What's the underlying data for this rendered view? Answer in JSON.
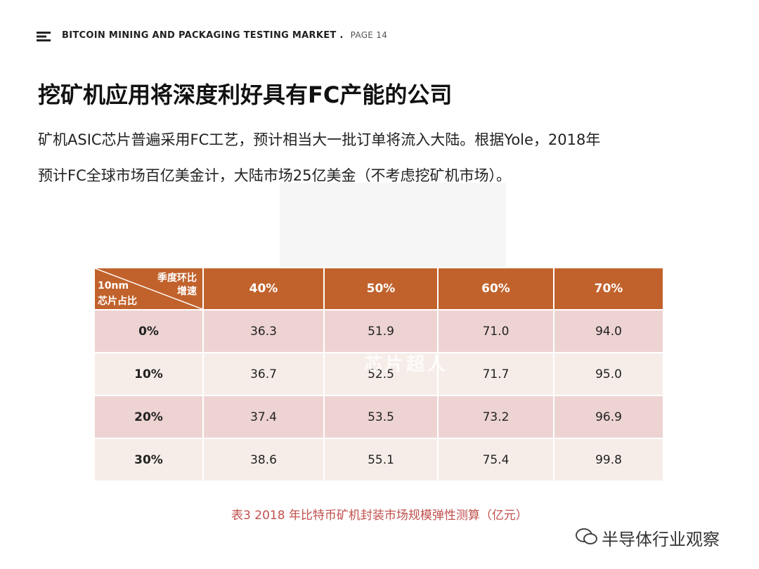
{
  "header": {
    "title": "BITCOIN MINING AND PACKAGING TESTING MARKET .",
    "page": "PAGE 14"
  },
  "title": "挖矿机应用将深度利好具有FC产能的公司",
  "paragraph": [
    "矿机ASIC芯片普遍采用FC工艺，预计相当大一批订单将流入大陆。根据Yole，2018年",
    "预计FC全球市场百亿美金计，大陆市场25亿美金（不考虑挖矿机市场）。"
  ],
  "table": {
    "corner": {
      "top_right": [
        "季度环比",
        "增速"
      ],
      "bottom_left": [
        "10nm",
        "芯片占比"
      ]
    },
    "columns": [
      "40%",
      "50%",
      "60%",
      "70%"
    ],
    "rows": [
      {
        "label": "0%",
        "cells": [
          "36.3",
          "51.9",
          "71.0",
          "94.0"
        ]
      },
      {
        "label": "10%",
        "cells": [
          "36.7",
          "52.5",
          "71.7",
          "95.0"
        ]
      },
      {
        "label": "20%",
        "cells": [
          "37.4",
          "53.5",
          "73.2",
          "96.9"
        ]
      },
      {
        "label": "30%",
        "cells": [
          "38.6",
          "55.1",
          "75.4",
          "99.8"
        ]
      }
    ]
  },
  "caption": "表3  2018 年比特币矿机封装市场规模弹性测算（亿元）",
  "watermarks": [
    "芯片超人",
    "半导体行业观察"
  ]
}
